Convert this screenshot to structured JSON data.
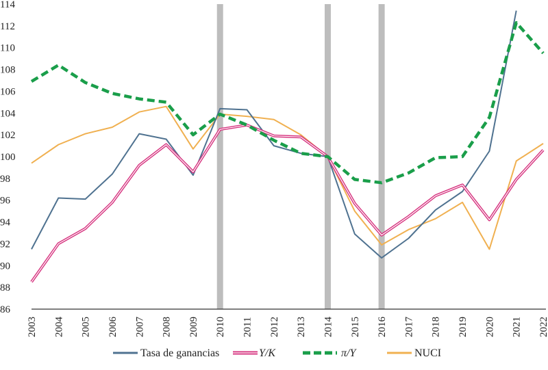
{
  "chart_data": {
    "type": "line",
    "title": "",
    "xlabel": "",
    "ylabel": "",
    "ylim": [
      86,
      114
    ],
    "yticks": [
      "86",
      "88",
      "90",
      "92",
      "94",
      "96",
      "98",
      "100",
      "102",
      "104",
      "106",
      "108",
      "110",
      "112",
      "114"
    ],
    "categories": [
      "2003",
      "2004",
      "2005",
      "2006",
      "2007",
      "2008",
      "2009",
      "2010",
      "2011",
      "2012",
      "2013",
      "2014",
      "2015",
      "2016",
      "2017",
      "2018",
      "2019",
      "2020",
      "2021",
      "2022"
    ],
    "highlight_years": [
      "2010",
      "2014",
      "2016"
    ],
    "grid": false,
    "legend_position": "bottom",
    "series": [
      {
        "name": "Tasa de ganancias",
        "color": "#4f7290",
        "style": "solid",
        "values": [
          91.5,
          96.2,
          96.1,
          98.4,
          102.1,
          101.6,
          98.3,
          104.4,
          104.3,
          101.0,
          100.3,
          100.0,
          92.9,
          90.7,
          92.5,
          95.1,
          96.8,
          100.5,
          113.4,
          null
        ]
      },
      {
        "name": "Y/K",
        "color": "#d6337f",
        "style": "double",
        "values": [
          88.5,
          92.0,
          93.4,
          95.8,
          99.2,
          101.1,
          98.6,
          102.5,
          102.9,
          101.9,
          101.8,
          100.0,
          95.7,
          92.8,
          94.5,
          96.4,
          97.4,
          94.2,
          97.9,
          100.6
        ]
      },
      {
        "name": "π/Y",
        "color": "#1a9e4a",
        "style": "dashed",
        "values": [
          106.9,
          108.4,
          106.8,
          105.8,
          105.3,
          105.0,
          102.0,
          103.9,
          102.9,
          101.5,
          100.3,
          100.0,
          97.9,
          97.6,
          98.5,
          99.9,
          100.0,
          103.6,
          112.3,
          109.5
        ]
      },
      {
        "name": "NUCI",
        "color": "#f0b050",
        "style": "solid",
        "values": [
          99.4,
          101.1,
          102.1,
          102.7,
          104.1,
          104.6,
          100.7,
          103.9,
          103.7,
          103.4,
          102.0,
          100.0,
          95.0,
          91.9,
          93.3,
          94.3,
          95.8,
          91.5,
          99.6,
          101.2
        ]
      }
    ],
    "highlight_color": "#bdbdbd"
  }
}
